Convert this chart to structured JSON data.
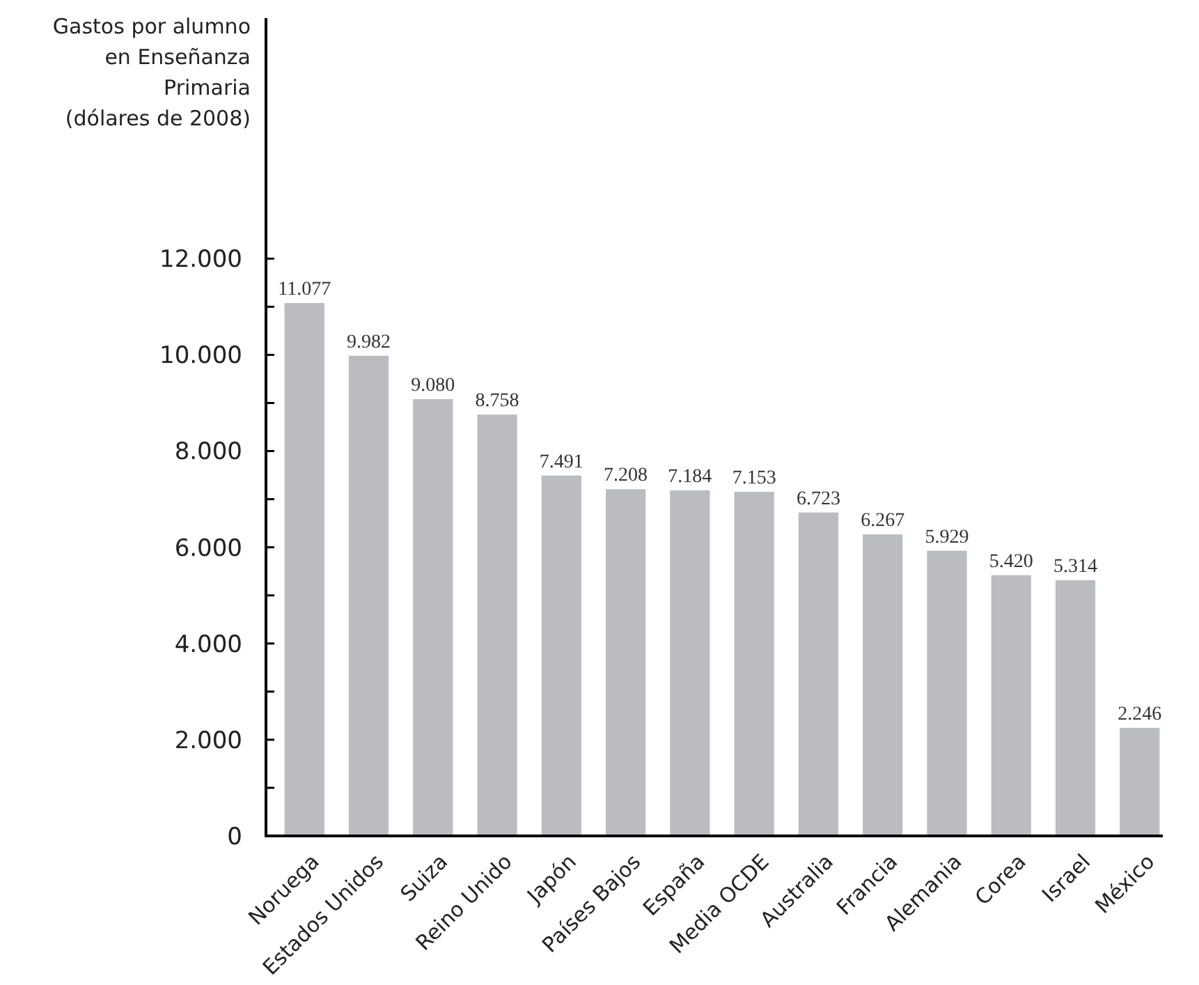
{
  "chart_data": {
    "type": "bar",
    "ylabel": "Gastos por alumno\nen Enseñanza\nPrimaria\n(dólares de 2008)",
    "categories": [
      "Noruega",
      "Estados Unidos",
      "Suiza",
      "Reino Unido",
      "Japón",
      "Países Bajos",
      "España",
      "Media OCDE",
      "Australia",
      "Francia",
      "Alemania",
      "Corea",
      "Israel",
      "México"
    ],
    "values": [
      11077,
      9982,
      9080,
      8758,
      7491,
      7208,
      7184,
      7153,
      6723,
      6267,
      5929,
      5420,
      5314,
      2246
    ],
    "value_labels": [
      "11.077",
      "9.982",
      "9.080",
      "8.758",
      "7.491",
      "7.208",
      "7.184",
      "7.153",
      "6.723",
      "6.267",
      "5.929",
      "5.420",
      "5.314",
      "2.246"
    ],
    "color": "#bbbcc0",
    "ylim": [
      0,
      17000
    ],
    "yticks": [
      {
        "value": 0,
        "label": "0"
      },
      {
        "value": 1000,
        "label": null
      },
      {
        "value": 2000,
        "label": "2.000"
      },
      {
        "value": 3000,
        "label": null
      },
      {
        "value": 4000,
        "label": "4.000"
      },
      {
        "value": 5000,
        "label": null
      },
      {
        "value": 6000,
        "label": "6.000"
      },
      {
        "value": 7000,
        "label": null
      },
      {
        "value": 8000,
        "label": "8.000"
      },
      {
        "value": 9000,
        "label": null
      },
      {
        "value": 10000,
        "label": "10.000"
      },
      {
        "value": 11000,
        "label": null
      },
      {
        "value": 12000,
        "label": "12.000"
      }
    ],
    "grid": false
  }
}
